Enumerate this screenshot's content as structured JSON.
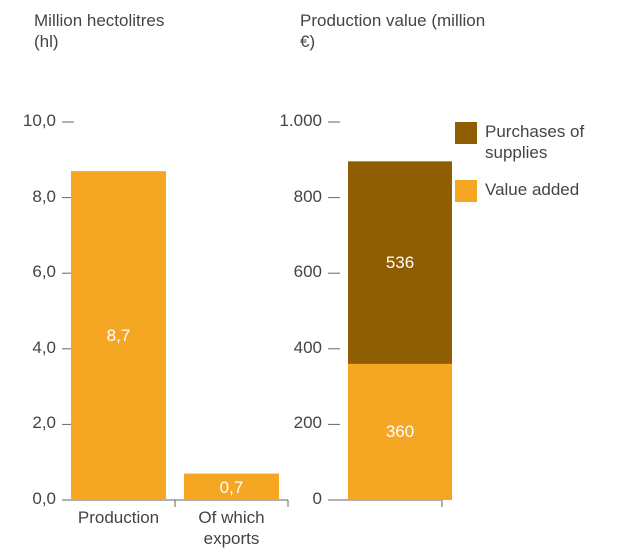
{
  "chart_data": [
    {
      "type": "bar",
      "axis_title": "Million hectolitres (hl)",
      "categories": [
        "Production",
        "Of which exports"
      ],
      "values": [
        8.7,
        0.7
      ],
      "value_labels": [
        "8,7",
        "0,7"
      ],
      "color": "#f5a623",
      "ylim": [
        0,
        10
      ],
      "yticks": [
        {
          "value": 0,
          "label": "0,0"
        },
        {
          "value": 2,
          "label": "2,0"
        },
        {
          "value": 4,
          "label": "4,0"
        },
        {
          "value": 6,
          "label": "6,0"
        },
        {
          "value": 8,
          "label": "8,0"
        },
        {
          "value": 10,
          "label": "10,0"
        }
      ]
    },
    {
      "type": "stacked_bar",
      "axis_title": "Production value (million €)",
      "categories": [
        null
      ],
      "series": [
        {
          "name": "Value added",
          "color": "#f5a623",
          "values": [
            360
          ]
        },
        {
          "name": "Purchases of supplies",
          "color": "#8f5e02",
          "values": [
            536
          ]
        }
      ],
      "ylim": [
        0,
        1000
      ],
      "yticks": [
        0,
        200,
        400,
        600,
        800,
        {
          "value": 1000,
          "label": "1.000"
        }
      ]
    }
  ]
}
